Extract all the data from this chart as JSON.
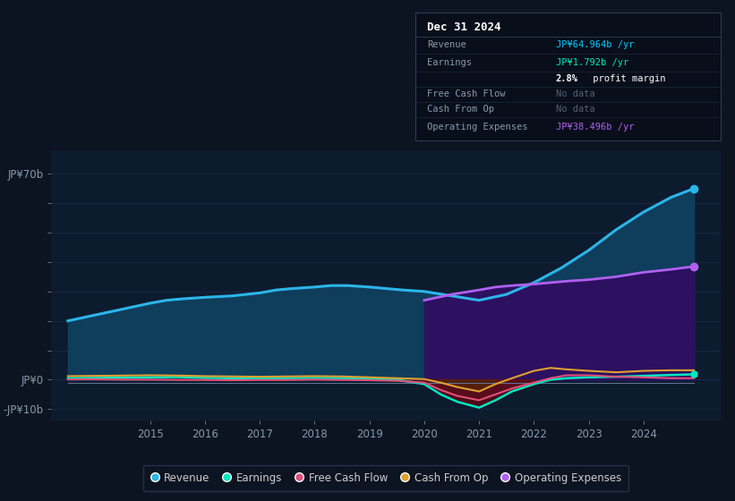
{
  "bg_color": "#0d1421",
  "plot_bg_color": "#0d1b2e",
  "chart_bg_dark": "#0a1220",
  "grid_color": "#1e3050",
  "yticks": [
    70,
    60,
    50,
    40,
    30,
    20,
    10,
    0,
    -10
  ],
  "ytick_labels": [
    "JP¥70b",
    "",
    "",
    "",
    "",
    "",
    "",
    "JP¥0",
    "-JP¥10b"
  ],
  "ylim": [
    -14,
    78
  ],
  "xlim": [
    2013.2,
    2025.4
  ],
  "xtick_positions": [
    2015,
    2016,
    2017,
    2018,
    2019,
    2020,
    2021,
    2022,
    2023,
    2024
  ],
  "revenue": {
    "x": [
      2013.5,
      2014.0,
      2014.5,
      2015.0,
      2015.3,
      2015.6,
      2016.0,
      2016.5,
      2017.0,
      2017.3,
      2017.6,
      2018.0,
      2018.3,
      2018.6,
      2019.0,
      2019.3,
      2019.6,
      2020.0,
      2020.5,
      2021.0,
      2021.5,
      2022.0,
      2022.5,
      2023.0,
      2023.5,
      2024.0,
      2024.5,
      2024.92
    ],
    "y": [
      20,
      22,
      24,
      26,
      27,
      27.5,
      28,
      28.5,
      29.5,
      30.5,
      31,
      31.5,
      32,
      32,
      31.5,
      31,
      30.5,
      30,
      28.5,
      27,
      29,
      33,
      38,
      44,
      51,
      57,
      62,
      65
    ],
    "color": "#2bb5e8",
    "fill_color": "#0f3d5c",
    "label": "Revenue"
  },
  "op_expenses": {
    "x": [
      2020.0,
      2020.5,
      2021.0,
      2021.3,
      2021.6,
      2022.0,
      2022.3,
      2022.6,
      2023.0,
      2023.5,
      2024.0,
      2024.5,
      2024.92
    ],
    "y": [
      27,
      29,
      30.5,
      31.5,
      32,
      32.5,
      33,
      33.5,
      34,
      35,
      36.5,
      37.5,
      38.5
    ],
    "color": "#b060f0",
    "fill_color": "#2d1060",
    "label": "Operating Expenses"
  },
  "earnings": {
    "x": [
      2013.5,
      2014.0,
      2014.5,
      2015.0,
      2015.5,
      2016.0,
      2016.5,
      2017.0,
      2017.5,
      2018.0,
      2018.5,
      2019.0,
      2019.5,
      2020.0,
      2020.3,
      2020.6,
      2021.0,
      2021.3,
      2021.6,
      2022.0,
      2022.3,
      2022.6,
      2023.0,
      2023.5,
      2024.0,
      2024.5,
      2024.92
    ],
    "y": [
      0.5,
      0.6,
      0.7,
      0.8,
      0.9,
      0.6,
      0.5,
      0.4,
      0.5,
      0.6,
      0.5,
      0.3,
      0.0,
      -1.5,
      -5.0,
      -7.5,
      -9.5,
      -7.0,
      -4.0,
      -1.5,
      0.0,
      0.5,
      0.8,
      1.0,
      1.3,
      1.6,
      1.8
    ],
    "color": "#00e8c0",
    "label": "Earnings"
  },
  "free_cash_flow": {
    "x": [
      2013.5,
      2014.0,
      2014.5,
      2015.0,
      2015.5,
      2016.0,
      2016.5,
      2017.0,
      2017.5,
      2018.0,
      2018.5,
      2019.0,
      2019.5,
      2020.0,
      2020.3,
      2020.6,
      2021.0,
      2021.3,
      2021.6,
      2022.0,
      2022.3,
      2022.6,
      2023.0,
      2023.5,
      2024.0,
      2024.5,
      2024.92
    ],
    "y": [
      0.1,
      0.1,
      0.0,
      0.0,
      -0.1,
      -0.1,
      -0.2,
      -0.1,
      -0.1,
      0.0,
      -0.1,
      -0.2,
      -0.4,
      -1.0,
      -3.5,
      -5.5,
      -7.0,
      -5.0,
      -3.0,
      -1.0,
      0.5,
      1.5,
      1.5,
      1.0,
      0.8,
      0.5,
      0.5
    ],
    "color": "#e0507a",
    "label": "Free Cash Flow"
  },
  "cash_from_op": {
    "x": [
      2013.5,
      2014.0,
      2014.5,
      2015.0,
      2015.5,
      2016.0,
      2016.5,
      2017.0,
      2017.5,
      2018.0,
      2018.5,
      2019.0,
      2019.5,
      2020.0,
      2020.3,
      2020.6,
      2021.0,
      2021.3,
      2021.6,
      2022.0,
      2022.3,
      2022.6,
      2023.0,
      2023.5,
      2024.0,
      2024.5,
      2024.92
    ],
    "y": [
      1.2,
      1.3,
      1.4,
      1.5,
      1.4,
      1.2,
      1.1,
      1.0,
      1.1,
      1.2,
      1.1,
      0.8,
      0.5,
      0.2,
      -1.0,
      -2.5,
      -4.0,
      -1.5,
      0.5,
      3.0,
      4.0,
      3.5,
      3.0,
      2.5,
      3.0,
      3.2,
      3.2
    ],
    "color": "#e0a030",
    "label": "Cash From Op"
  },
  "gray_line": {
    "x": [
      2013.5,
      2024.92
    ],
    "y": [
      -1.0,
      -1.0
    ],
    "color": "#607090"
  },
  "tooltip": {
    "title": "Dec 31 2024",
    "bg_color": "#080e1a",
    "border_color": "#2a3a52"
  },
  "tooltip_rows": [
    {
      "label": "Revenue",
      "value": "JP¥64.964b /yr",
      "value_color": "#00ccff",
      "no_data": false
    },
    {
      "label": "Earnings",
      "value": "JP¥1.792b /yr",
      "value_color": "#00e8c0",
      "no_data": false
    },
    {
      "label": "",
      "value": "2.8% profit margin",
      "value_color": "#ffffff",
      "no_data": false,
      "bold_prefix": "2.8%"
    },
    {
      "label": "Free Cash Flow",
      "value": "No data",
      "value_color": "#556070",
      "no_data": true
    },
    {
      "label": "Cash From Op",
      "value": "No data",
      "value_color": "#556070",
      "no_data": true
    },
    {
      "label": "Operating Expenses",
      "value": "JP¥38.496b /yr",
      "value_color": "#b060f0",
      "no_data": false
    }
  ],
  "legend_items": [
    {
      "label": "Revenue",
      "color": "#2bb5e8"
    },
    {
      "label": "Earnings",
      "color": "#00e8c0"
    },
    {
      "label": "Free Cash Flow",
      "color": "#e0507a"
    },
    {
      "label": "Cash From Op",
      "color": "#e0a030"
    },
    {
      "label": "Operating Expenses",
      "color": "#b060f0"
    }
  ],
  "legend_bg": "#0d1421",
  "legend_border": "#2a3a52"
}
